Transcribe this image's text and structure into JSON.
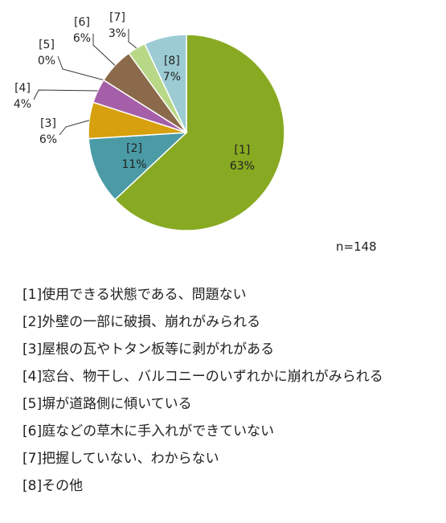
{
  "chart_data": {
    "type": "pie",
    "start_angle_deg": 0,
    "direction": "clockwise",
    "slices": [
      {
        "id": "[1]",
        "value": 63,
        "label": "63%",
        "color": "#88aa22",
        "legend": "[1]使用できる状態である、問題ない"
      },
      {
        "id": "[2]",
        "value": 11,
        "label": "11%",
        "color": "#4a9ba6",
        "legend": "[2]外壁の一部に破損、崩れがみられる"
      },
      {
        "id": "[3]",
        "value": 6,
        "label": "6%",
        "color": "#d6a00e",
        "legend": "[3]屋根の瓦やトタン板等に剥がれがある"
      },
      {
        "id": "[4]",
        "value": 4,
        "label": "4%",
        "color": "#a45fa8",
        "legend": "[4]窓台、物干し、バルコニーのいずれかに崩れがみられる"
      },
      {
        "id": "[5]",
        "value": 0,
        "label": "0%",
        "color": "#cfcfcf",
        "legend": "[5]塀が道路側に傾いている"
      },
      {
        "id": "[6]",
        "value": 6,
        "label": "6%",
        "color": "#8a6a4a",
        "legend": "[6]庭などの草木に手入れができていない"
      },
      {
        "id": "[7]",
        "value": 3,
        "label": "3%",
        "color": "#b8d888",
        "legend": "[7]把握していない、わからない"
      },
      {
        "id": "[8]",
        "value": 7,
        "label": "7%",
        "color": "#9ccbd4",
        "legend": "[8]その他"
      }
    ],
    "note": "n=148"
  }
}
